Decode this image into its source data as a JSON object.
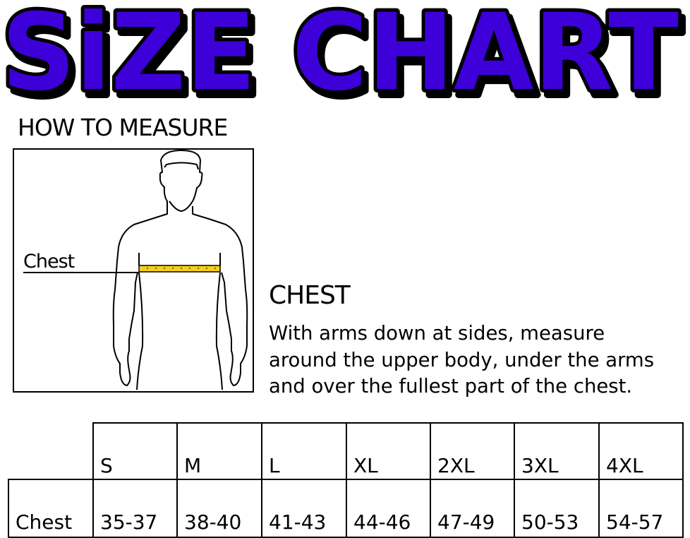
{
  "title": "SiZE CHART",
  "colors": {
    "title_fill": "#3d00d9",
    "title_outline": "#000000",
    "tape": "#f5cf1a"
  },
  "how_to_measure": {
    "heading": "HOW TO MEASURE",
    "figure_label": "Chest"
  },
  "chest_section": {
    "heading": "CHEST",
    "lines": [
      "With arms down at sides, measure",
      "around the upper body, under the arms",
      "and over the fullest part of the chest."
    ]
  },
  "table": {
    "sizes": [
      "S",
      "M",
      "L",
      "XL",
      "2XL",
      "3XL",
      "4XL"
    ],
    "rows": [
      {
        "label": "Chest",
        "values": [
          "35-37",
          "38-40",
          "41-43",
          "44-46",
          "47-49",
          "50-53",
          "54-57"
        ]
      }
    ]
  }
}
